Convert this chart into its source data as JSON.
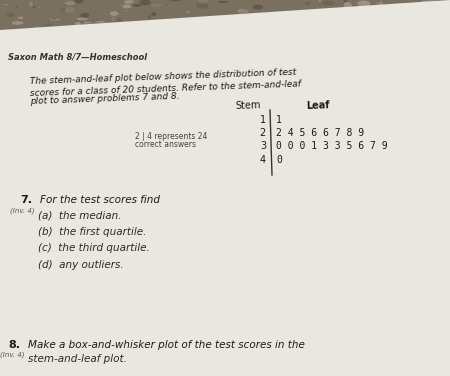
{
  "bg_top_color": "#8a8070",
  "bg_paper_color": "#e8e4dc",
  "title": "Saxon Math 8/7—Homeschool",
  "intro_line1": "The stem-and-leaf plot below shows the distribution of test",
  "intro_line2": "scores for a class of 20 students. Refer to the stem-and-leaf",
  "intro_line3": "plot to answer problems 7 and 8.",
  "stem_header": "Stem",
  "leaf_header": "Leaf",
  "stem_leaf_data": [
    {
      "stem": "1",
      "leaf": "1"
    },
    {
      "stem": "2",
      "leaf": "2 4 5 6 6 7 8 9"
    },
    {
      "stem": "3",
      "leaf": "0 0 0 1 3 3 5 6 7 9"
    },
    {
      "stem": "4",
      "leaf": "0"
    }
  ],
  "key_line1": "2 | 4 represents 24",
  "key_line2": "correct answers",
  "q7_num": "7.",
  "q7_inv": "(Inv. 4)",
  "q7_head": "For the test scores find",
  "q7a": "(a)  the median.",
  "q7b": "(b)  the first quartile.",
  "q7c": "(c)  the third quartile.",
  "q7d": "(d)  any outliers.",
  "q8_num": "8.",
  "q8_inv": "(Inv. 4)",
  "q8_text1": "Make a box-and-whisker plot of the test scores in the",
  "q8_text2": "stem-and-leaf plot.",
  "text_color": "#1a1a1a",
  "italic_color": "#2a2a2a",
  "table_line_color": "#333333"
}
